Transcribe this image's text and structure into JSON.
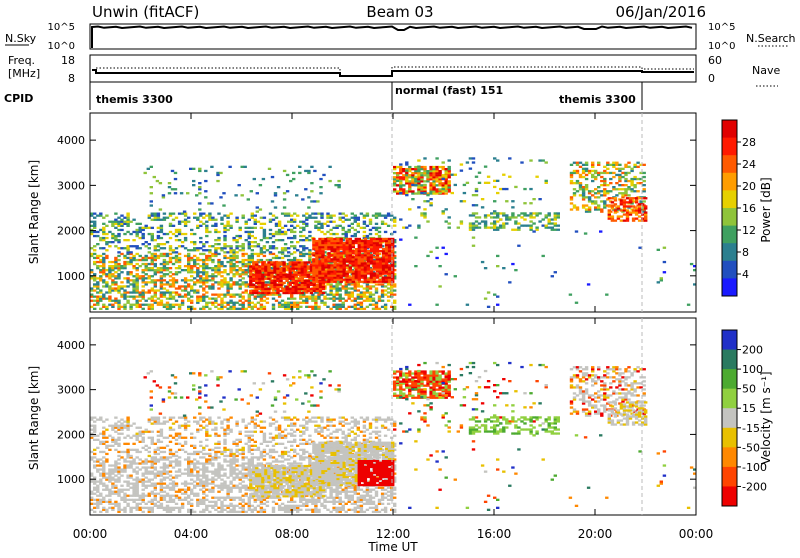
{
  "header": {
    "station": "Unwin (fitACF)",
    "beam": "Beam 03",
    "date": "06/Jan/2016"
  },
  "nsky_panel": {
    "left_label": "N.Sky",
    "right_label": "N.Search",
    "ticks_left": [
      "10^5",
      "10^0"
    ],
    "ticks_right": [
      "10^5",
      "10^0"
    ]
  },
  "freq_panel": {
    "left_label_1": "Freq.",
    "left_label_2": "[MHz]",
    "ticks_left": [
      "18",
      "8"
    ],
    "ticks_right": [
      "60",
      "0"
    ],
    "right_label": "Nave"
  },
  "cpid": {
    "label": "CPID",
    "segments": [
      "themis 3300",
      "normal (fast) 151",
      "themis 3300"
    ]
  },
  "colors": {
    "power_scale": [
      "#1a1aff",
      "#214fbf",
      "#2b7f8f",
      "#3fa060",
      "#8fc43a",
      "#e6d000",
      "#ff9d00",
      "#ff5a00",
      "#ff1a00",
      "#e00000"
    ],
    "velocity_scale": [
      "#2030c8",
      "#2a7a60",
      "#4caa30",
      "#90d040",
      "#c4c4c0",
      "#e8c000",
      "#ff8800",
      "#ff4400",
      "#ee0000"
    ]
  },
  "chart_data": [
    {
      "type": "heatmap",
      "name": "power",
      "ylabel": "Slant Range [km]",
      "yticks": [
        "1000",
        "2000",
        "3000",
        "4000"
      ],
      "ylim": [
        200,
        4600
      ],
      "xlim_hours": [
        0,
        24
      ],
      "colorbar_label": "Power [dB]",
      "colorbar_ticks": [
        "4",
        "8",
        "12",
        "16",
        "20",
        "24",
        "28"
      ],
      "colorbar_range": [
        0,
        32
      ]
    },
    {
      "type": "heatmap",
      "name": "velocity",
      "ylabel": "Slant Range [km]",
      "yticks": [
        "1000",
        "2000",
        "3000",
        "4000"
      ],
      "ylim": [
        200,
        4600
      ],
      "xlim_hours": [
        0,
        24
      ],
      "colorbar_label": "Velocity [m s⁻¹]",
      "colorbar_ticks": [
        "200",
        "100",
        "50",
        "15",
        "-15",
        "-50",
        "-100",
        "-200"
      ]
    }
  ],
  "xaxis": {
    "ticks": [
      "00:00",
      "04:00",
      "08:00",
      "12:00",
      "16:00",
      "20:00",
      "00:00"
    ],
    "label": "Time UT"
  }
}
